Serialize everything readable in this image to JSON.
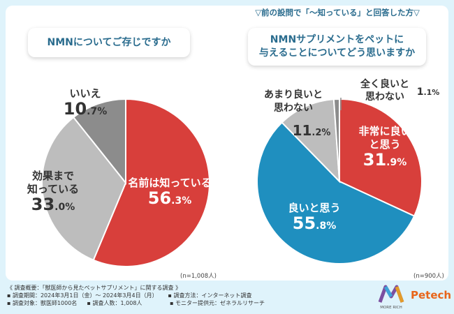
{
  "condition_note": "▽前の設問で「〜知っている」と回答した方▽",
  "questions": {
    "q1": "NMNについてご存じですか",
    "q2_line1": "NMNサプリメントをペットに",
    "q2_line2": "与えることについてどう思いますか"
  },
  "sample_notes": {
    "left": "(n=1,008人)",
    "right": "(n=900人)"
  },
  "footer": {
    "title": "《 調査概要：「獣医師から見たペットサプリメント」に関する調査 》",
    "period": "▪ 調査期間：2024年3月1日（金）〜 2024年3月4日（月）",
    "method": "▪ 調査方法：インターネット調査",
    "target": "▪ 調査対象：獣医師1000名",
    "count": "▪ 調査人数：1,008人",
    "provider": "▪ モニター提供元：ゼネラルリサーチ"
  },
  "brand": {
    "logo_text": "MORE RICH",
    "name": "Petech"
  },
  "colors": {
    "red": "#d83f3b",
    "gray": "#b9b9b9",
    "darkgray": "#8a8a8a",
    "blue": "#1f8fbf",
    "light": "#cfcfcf"
  },
  "chart_data": [
    {
      "type": "pie",
      "title": "NMNについてご存じですか",
      "sample": "(n=1,008人)",
      "slices": [
        {
          "label": "名前は知っている",
          "value": 56.3,
          "color": "#d83f3b"
        },
        {
          "label": "効果まで知っている",
          "value": 33.0,
          "color": "#bdbdbd"
        },
        {
          "label": "いいえ",
          "value": 10.7,
          "color": "#8c8c8c"
        }
      ]
    },
    {
      "type": "pie",
      "title": "NMNサプリメントをペットに与えることについてどう思いますか",
      "sample": "(n=900人)",
      "slices": [
        {
          "label": "非常に良いと思う",
          "value": 31.9,
          "color": "#d83f3b"
        },
        {
          "label": "良いと思う",
          "value": 55.8,
          "color": "#1f8fbf"
        },
        {
          "label": "あまり良いと思わない",
          "value": 11.2,
          "color": "#bdbdbd"
        },
        {
          "label": "全く良いと思わない",
          "value": 1.1,
          "color": "#8c8c8c"
        }
      ]
    }
  ]
}
